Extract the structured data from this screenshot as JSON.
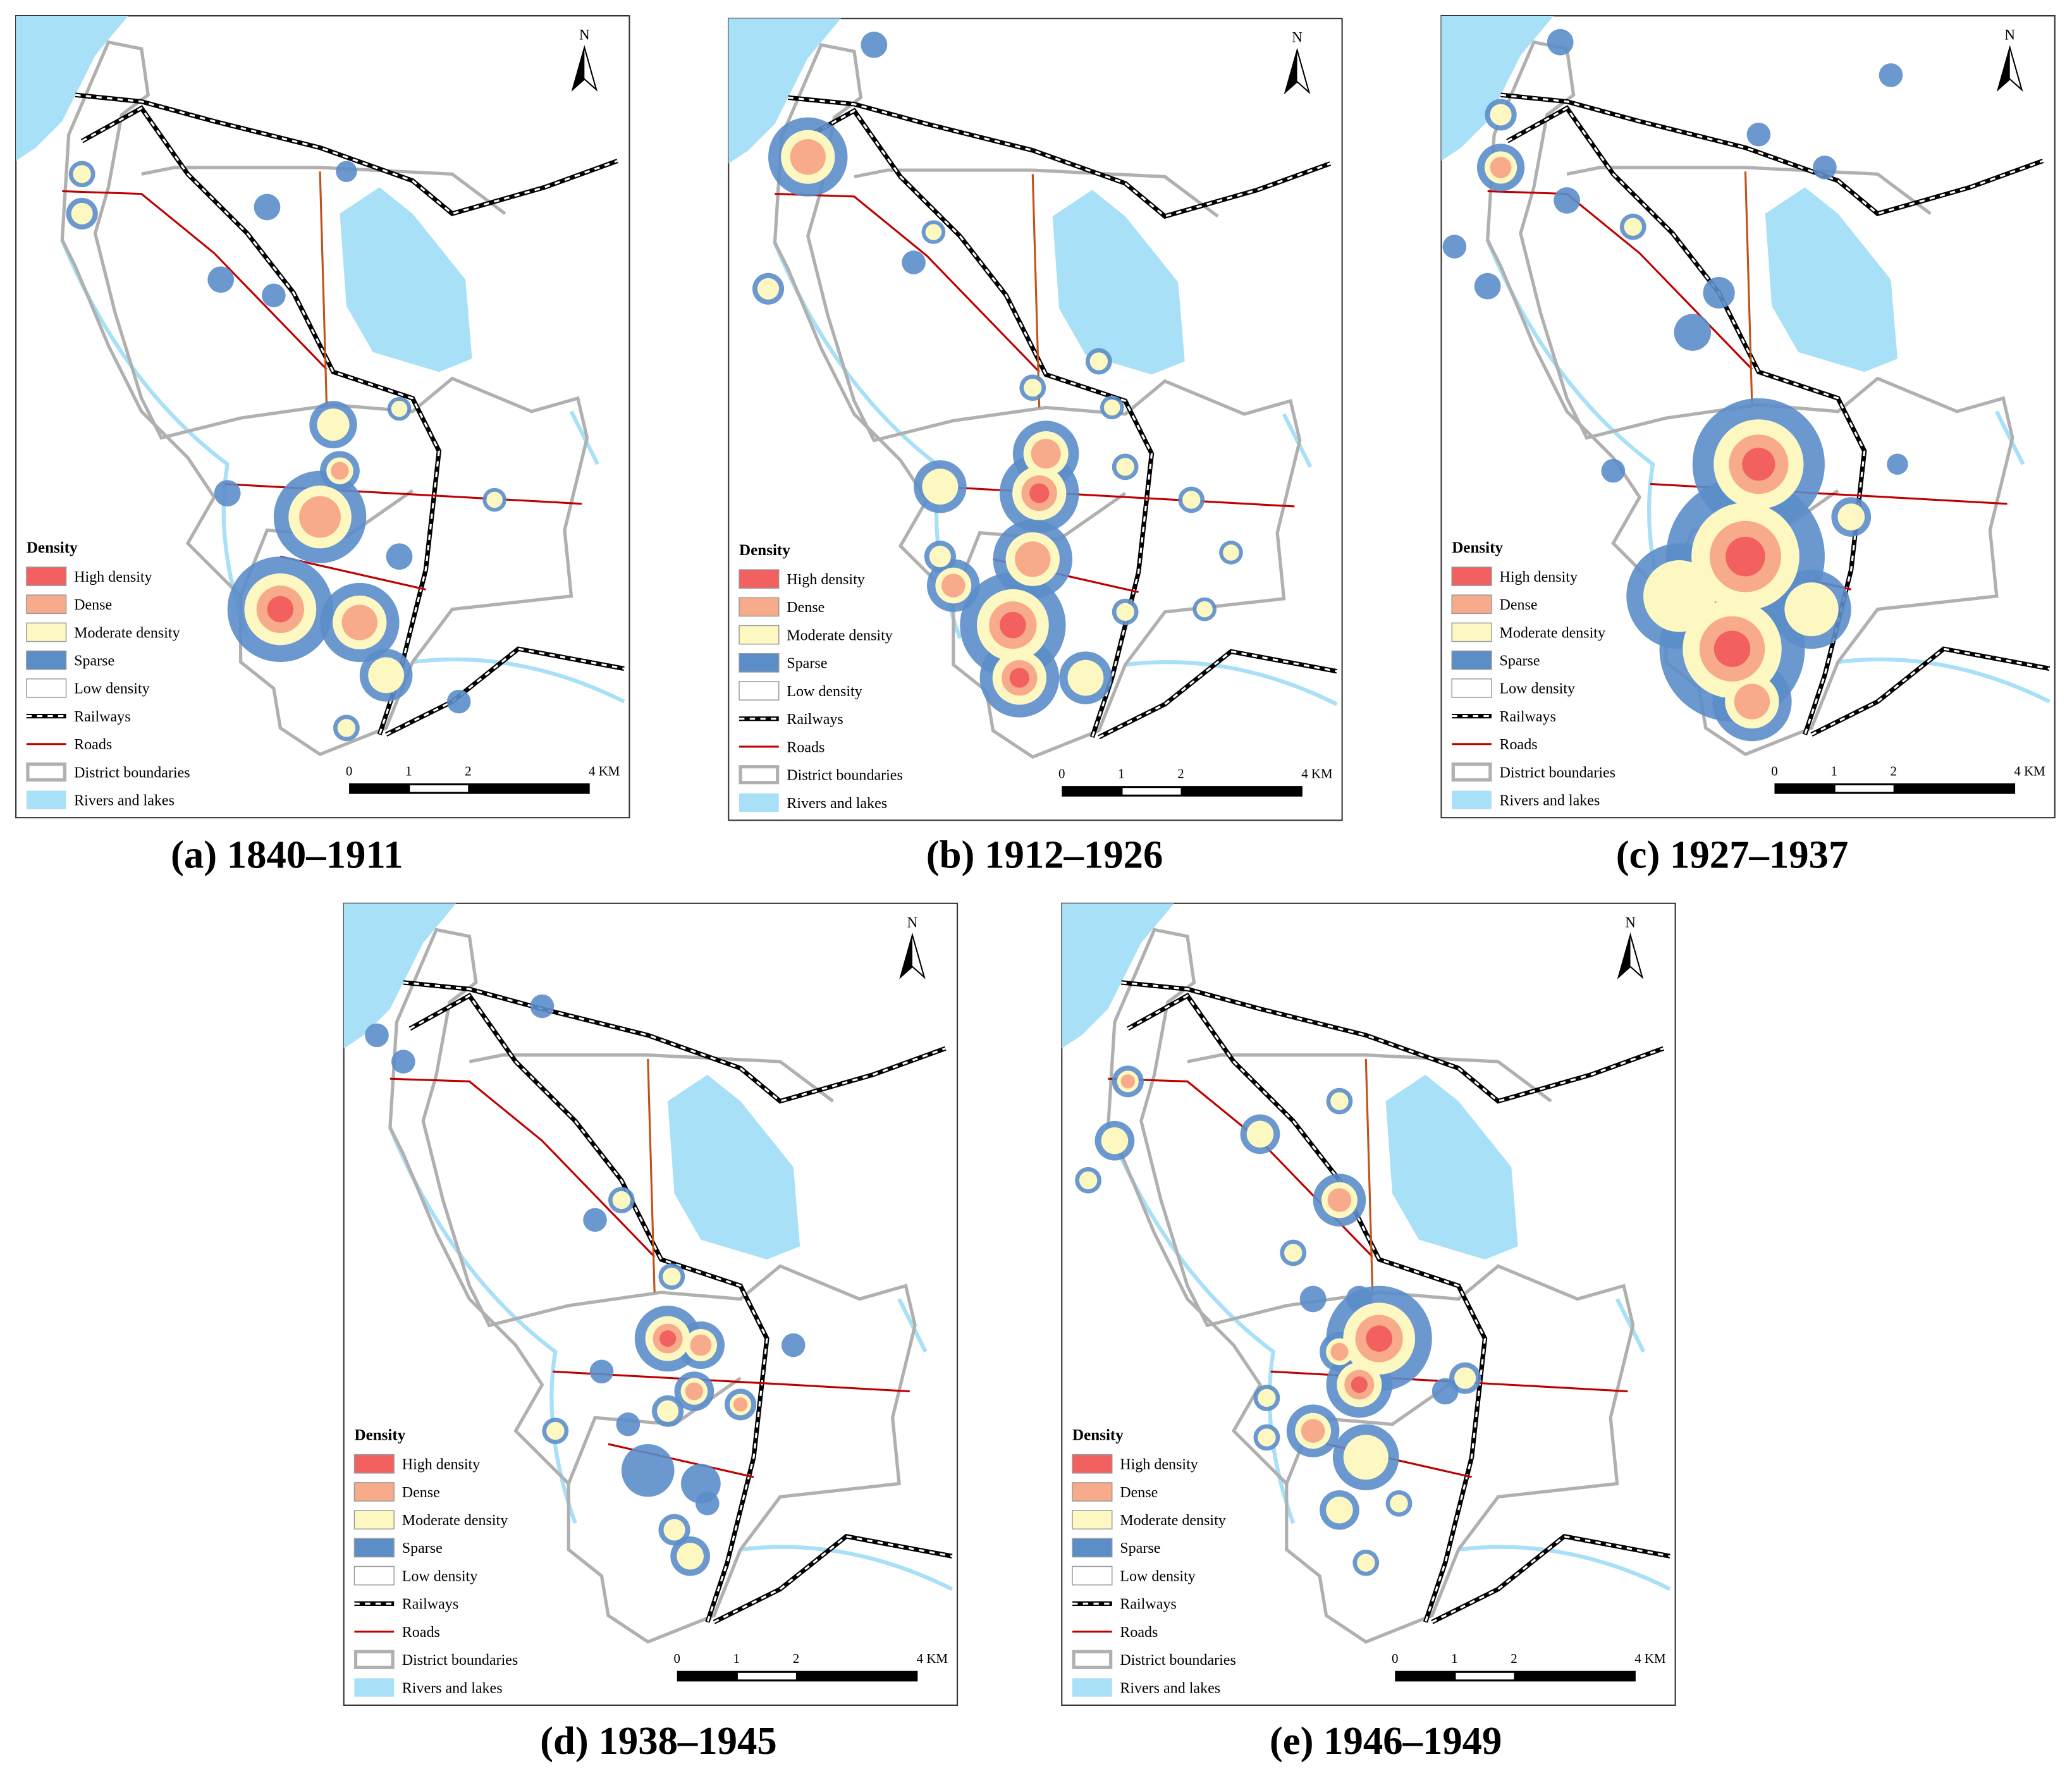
{
  "panels": [
    {
      "caption": "(a) 1840–1911"
    },
    {
      "caption": "(b) 1912–1926"
    },
    {
      "caption": "(c) 1927–1937"
    },
    {
      "caption": "(d) 1938–1945"
    },
    {
      "caption": "(e) 1946–1949"
    }
  ],
  "legend": {
    "title": "Density",
    "items": [
      "High density",
      "Dense",
      "Moderate density",
      "Sparse",
      "Low density",
      "Railways",
      "Roads",
      "District boundaries",
      "Rivers and lakes"
    ]
  },
  "scale_bar": {
    "labels": [
      "0",
      "1",
      "2",
      "4 KM"
    ]
  },
  "north": "N"
}
